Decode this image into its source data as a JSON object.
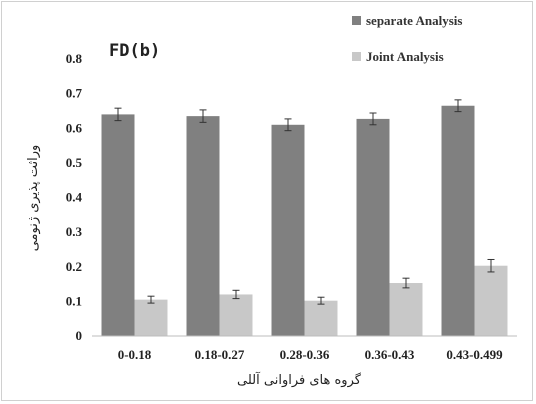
{
  "chart_data": {
    "type": "bar",
    "title": "FD(b)",
    "xlabel": "گروه های فراوانی آللی",
    "ylabel": "وراثت پذیری ژنومی",
    "categories": [
      "0-0.18",
      "0.18-0.27",
      "0.28-0.36",
      "0.36-0.43",
      "0.43-0.499"
    ],
    "ylim": [
      0,
      0.8
    ],
    "yticks": [
      "0",
      "0.1",
      "0.2",
      "0.3",
      "0.4",
      "0.5",
      "0.6",
      "0.7",
      "0.8"
    ],
    "grid": false,
    "legend_position": "top-right",
    "series": [
      {
        "name": "separate Analysis",
        "color": "#808080",
        "values": [
          0.64,
          0.635,
          0.61,
          0.627,
          0.665
        ],
        "errors": [
          0.018,
          0.018,
          0.017,
          0.017,
          0.017
        ]
      },
      {
        "name": "Joint Analysis",
        "color": "#c8c8c8",
        "values": [
          0.105,
          0.12,
          0.102,
          0.153,
          0.203
        ],
        "errors": [
          0.01,
          0.012,
          0.01,
          0.014,
          0.018
        ]
      }
    ]
  }
}
